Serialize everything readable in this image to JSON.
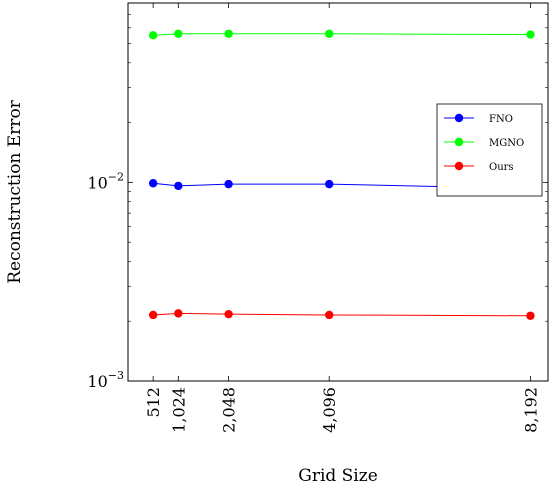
{
  "chart_data": {
    "type": "line",
    "title": "",
    "xlabel": "Grid Size",
    "ylabel": "Reconstruction Error",
    "x": [
      512,
      1024,
      2048,
      4096,
      8192
    ],
    "x_tick_labels": [
      "512",
      "1,024",
      "2,048",
      "4,096",
      "8,192"
    ],
    "xlim": [
      0,
      8550
    ],
    "y_scale": "log",
    "ylim": [
      0.001,
      0.08
    ],
    "y_major_ticks": [
      {
        "value": 0.001,
        "base": "10",
        "exp": "−3"
      },
      {
        "value": 0.01,
        "base": "10",
        "exp": "−2"
      }
    ],
    "grid": false,
    "legend_position": "right",
    "series": [
      {
        "name": "FNO",
        "color": "#0000ff",
        "values": [
          0.0099,
          0.0096,
          0.0098,
          0.0098,
          0.0093
        ]
      },
      {
        "name": "MGNO",
        "color": "#00ff00",
        "values": [
          0.055,
          0.056,
          0.056,
          0.056,
          0.0555
        ]
      },
      {
        "name": "Ours",
        "color": "#ff0000",
        "values": [
          0.00215,
          0.00219,
          0.00217,
          0.00215,
          0.00213
        ]
      }
    ]
  }
}
